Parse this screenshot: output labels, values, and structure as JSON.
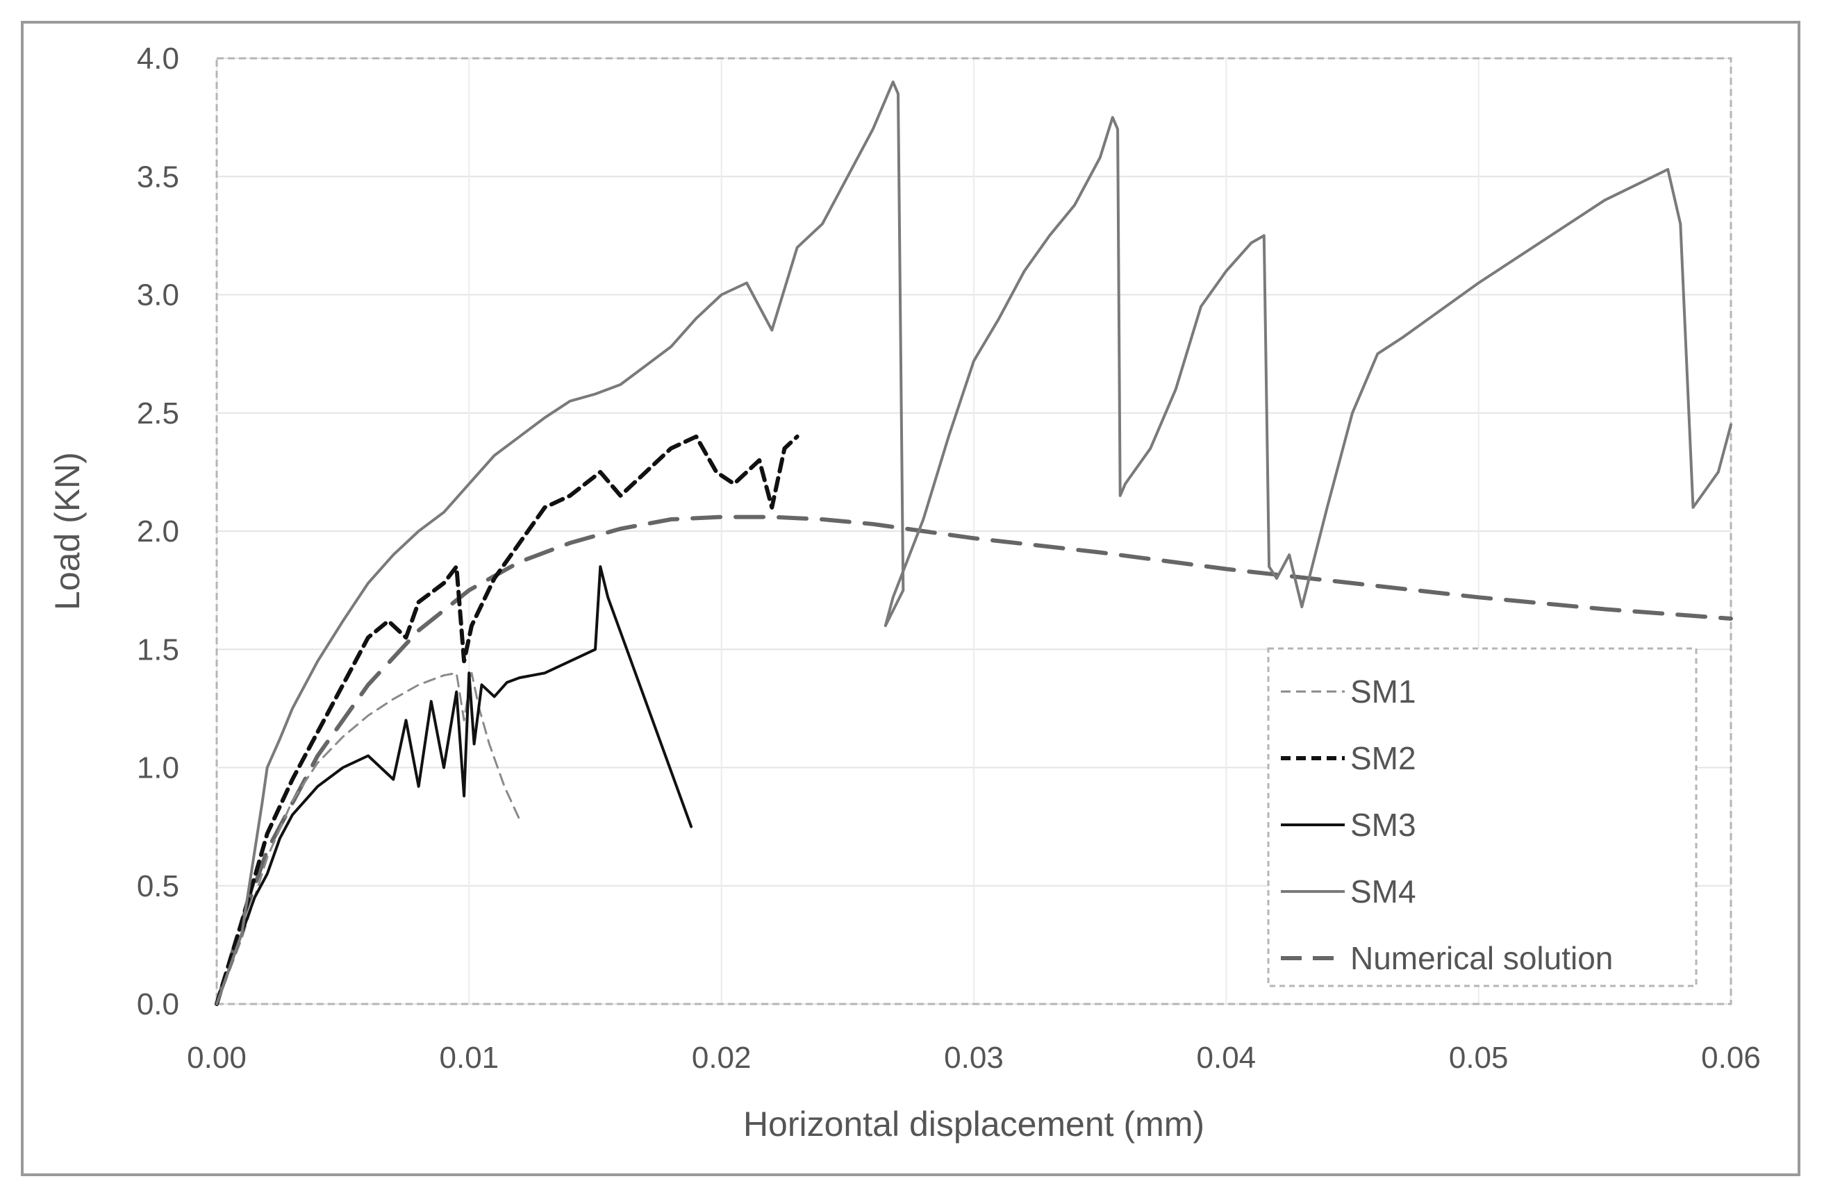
{
  "chart_data": {
    "type": "line",
    "title": "",
    "xlabel": "Horizontal displacement (mm)",
    "ylabel": "Load (KN)",
    "xlim": [
      0,
      0.06
    ],
    "ylim": [
      0,
      4.0
    ],
    "x_ticks": [
      "0.00",
      "0.01",
      "0.02",
      "0.03",
      "0.04",
      "0.05",
      "0.06"
    ],
    "y_ticks": [
      "0.0",
      "0.5",
      "1.0",
      "1.5",
      "2.0",
      "2.5",
      "3.0",
      "3.5",
      "4.0"
    ],
    "grid": true,
    "legend_placement": "bottom-right",
    "series": [
      {
        "name": "SM1",
        "style": "thin-dashed",
        "color": "#8a8a8a",
        "x": [
          0,
          0.001,
          0.002,
          0.003,
          0.004,
          0.005,
          0.006,
          0.007,
          0.008,
          0.009,
          0.0095,
          0.0098,
          0.0101,
          0.0104,
          0.0108,
          0.0114,
          0.012
        ],
        "y": [
          0,
          0.28,
          0.62,
          0.86,
          1.02,
          1.13,
          1.22,
          1.29,
          1.35,
          1.39,
          1.4,
          1.2,
          1.4,
          1.25,
          1.1,
          0.92,
          0.78
        ]
      },
      {
        "name": "SM2",
        "style": "thick-dashed",
        "color": "#111111",
        "x": [
          0,
          0.001,
          0.002,
          0.003,
          0.004,
          0.005,
          0.006,
          0.0068,
          0.0075,
          0.008,
          0.009,
          0.0095,
          0.0098,
          0.0101,
          0.011,
          0.012,
          0.013,
          0.014,
          0.0152,
          0.016,
          0.017,
          0.018,
          0.019,
          0.0198,
          0.0205,
          0.0215,
          0.022,
          0.0225,
          0.023
        ],
        "y": [
          0,
          0.35,
          0.72,
          0.95,
          1.15,
          1.35,
          1.55,
          1.62,
          1.55,
          1.7,
          1.78,
          1.85,
          1.45,
          1.6,
          1.8,
          1.95,
          2.1,
          2.15,
          2.25,
          2.15,
          2.25,
          2.35,
          2.4,
          2.25,
          2.2,
          2.3,
          2.1,
          2.35,
          2.4
        ]
      },
      {
        "name": "SM3",
        "style": "solid",
        "color": "#111111",
        "x": [
          0,
          0.0005,
          0.001,
          0.0015,
          0.002,
          0.0025,
          0.003,
          0.004,
          0.005,
          0.006,
          0.007,
          0.0075,
          0.008,
          0.0085,
          0.009,
          0.0095,
          0.0098,
          0.01,
          0.0102,
          0.0105,
          0.011,
          0.0115,
          0.012,
          0.013,
          0.014,
          0.015,
          0.0152,
          0.0155,
          0.0188
        ],
        "y": [
          0,
          0.15,
          0.3,
          0.45,
          0.55,
          0.7,
          0.8,
          0.92,
          1.0,
          1.05,
          0.95,
          1.2,
          0.92,
          1.28,
          1.0,
          1.32,
          0.88,
          1.4,
          1.1,
          1.35,
          1.3,
          1.36,
          1.38,
          1.4,
          1.45,
          1.5,
          1.85,
          1.72,
          0.75
        ]
      },
      {
        "name": "SM4",
        "style": "solid",
        "color": "#7a7a7a",
        "x": [
          0,
          0.001,
          0.0018,
          0.002,
          0.0025,
          0.003,
          0.004,
          0.005,
          0.006,
          0.007,
          0.008,
          0.009,
          0.01,
          0.011,
          0.012,
          0.013,
          0.014,
          0.015,
          0.016,
          0.017,
          0.018,
          0.019,
          0.02,
          0.021,
          0.022,
          0.023,
          0.024,
          0.025,
          0.026,
          0.0268,
          0.027,
          0.0272,
          0.0265,
          0.0268,
          0.028,
          0.029,
          0.03,
          0.031,
          0.032,
          0.033,
          0.034,
          0.035,
          0.0355,
          0.0357,
          0.0358,
          0.036,
          0.037,
          0.038,
          0.039,
          0.04,
          0.041,
          0.0415,
          0.0417,
          0.042,
          0.0425,
          0.043,
          0.044,
          0.045,
          0.046,
          0.047,
          0.05,
          0.055,
          0.0575,
          0.058,
          0.0585,
          0.0595,
          0.06
        ],
        "y": [
          0,
          0.3,
          0.85,
          1.0,
          1.12,
          1.25,
          1.45,
          1.62,
          1.78,
          1.9,
          2.0,
          2.08,
          2.2,
          2.32,
          2.4,
          2.48,
          2.55,
          2.58,
          2.62,
          2.7,
          2.78,
          2.9,
          3.0,
          3.05,
          2.85,
          3.2,
          3.3,
          3.5,
          3.7,
          3.9,
          3.85,
          1.75,
          1.6,
          1.72,
          2.05,
          2.4,
          2.72,
          2.9,
          3.1,
          3.25,
          3.38,
          3.58,
          3.75,
          3.7,
          2.15,
          2.2,
          2.35,
          2.6,
          2.95,
          3.1,
          3.22,
          3.25,
          1.85,
          1.8,
          1.9,
          1.68,
          2.1,
          2.5,
          2.75,
          2.82,
          3.05,
          3.4,
          3.53,
          3.3,
          2.1,
          2.25,
          2.45
        ]
      },
      {
        "name": "Numerical solution",
        "style": "long-dashed",
        "color": "#666666",
        "x": [
          0,
          0.001,
          0.002,
          0.004,
          0.006,
          0.008,
          0.01,
          0.012,
          0.014,
          0.016,
          0.018,
          0.02,
          0.022,
          0.024,
          0.026,
          0.028,
          0.03,
          0.035,
          0.04,
          0.045,
          0.05,
          0.055,
          0.06
        ],
        "y": [
          0,
          0.35,
          0.65,
          1.05,
          1.35,
          1.58,
          1.75,
          1.87,
          1.95,
          2.01,
          2.05,
          2.06,
          2.06,
          2.05,
          2.03,
          2.0,
          1.97,
          1.91,
          1.84,
          1.78,
          1.72,
          1.67,
          1.63
        ]
      }
    ]
  }
}
